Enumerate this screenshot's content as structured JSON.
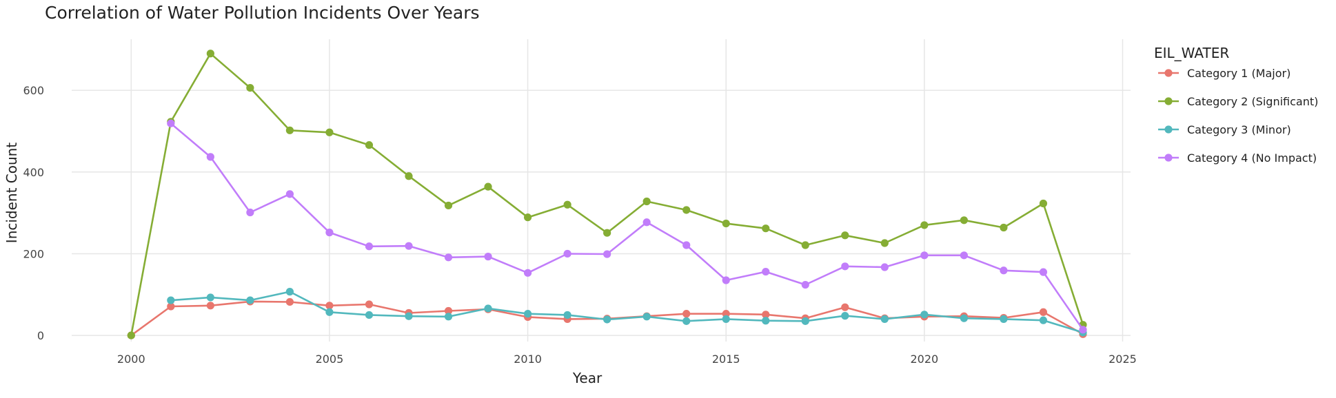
{
  "chart_data": {
    "type": "line",
    "title": "Correlation of Water Pollution Incidents Over Years",
    "xlabel": "Year",
    "ylabel": "Incident Count",
    "legend_title": "EIL_WATER",
    "legend_position": "right",
    "grid": true,
    "xlim": [
      1998.5,
      2025.2
    ],
    "ylim": [
      -15,
      725
    ],
    "x_ticks": [
      2000,
      2005,
      2010,
      2015,
      2020,
      2025
    ],
    "y_ticks": [
      0,
      200,
      400,
      600
    ],
    "x": [
      2000,
      2001,
      2002,
      2003,
      2004,
      2005,
      2006,
      2007,
      2008,
      2009,
      2010,
      2011,
      2012,
      2013,
      2014,
      2015,
      2016,
      2017,
      2018,
      2019,
      2020,
      2021,
      2022,
      2023,
      2024
    ],
    "series": [
      {
        "name": "Category 1 (Major)",
        "color": "#e8766d",
        "values": [
          0,
          71,
          73,
          83,
          82,
          73,
          76,
          55,
          60,
          64,
          45,
          40,
          41,
          47,
          53,
          53,
          51,
          42,
          69,
          42,
          46,
          47,
          43,
          57,
          3
        ]
      },
      {
        "name": "Category 2 (Significant)",
        "color": "#85ad34",
        "values": [
          0,
          523,
          690,
          606,
          502,
          497,
          466,
          390,
          318,
          364,
          289,
          320,
          251,
          328,
          307,
          274,
          262,
          221,
          245,
          226,
          270,
          282,
          264,
          323,
          26
        ]
      },
      {
        "name": "Category 3 (Minor)",
        "color": "#52b8bd",
        "values": [
          null,
          86,
          93,
          86,
          107,
          57,
          50,
          47,
          46,
          66,
          53,
          50,
          39,
          46,
          35,
          40,
          36,
          35,
          48,
          40,
          51,
          42,
          40,
          37,
          7
        ]
      },
      {
        "name": "Category 4 (No Impact)",
        "color": "#c17dfa",
        "values": [
          null,
          519,
          437,
          301,
          346,
          252,
          218,
          219,
          191,
          193,
          153,
          200,
          199,
          277,
          221,
          135,
          156,
          124,
          169,
          167,
          196,
          196,
          159,
          155,
          14
        ]
      }
    ]
  }
}
